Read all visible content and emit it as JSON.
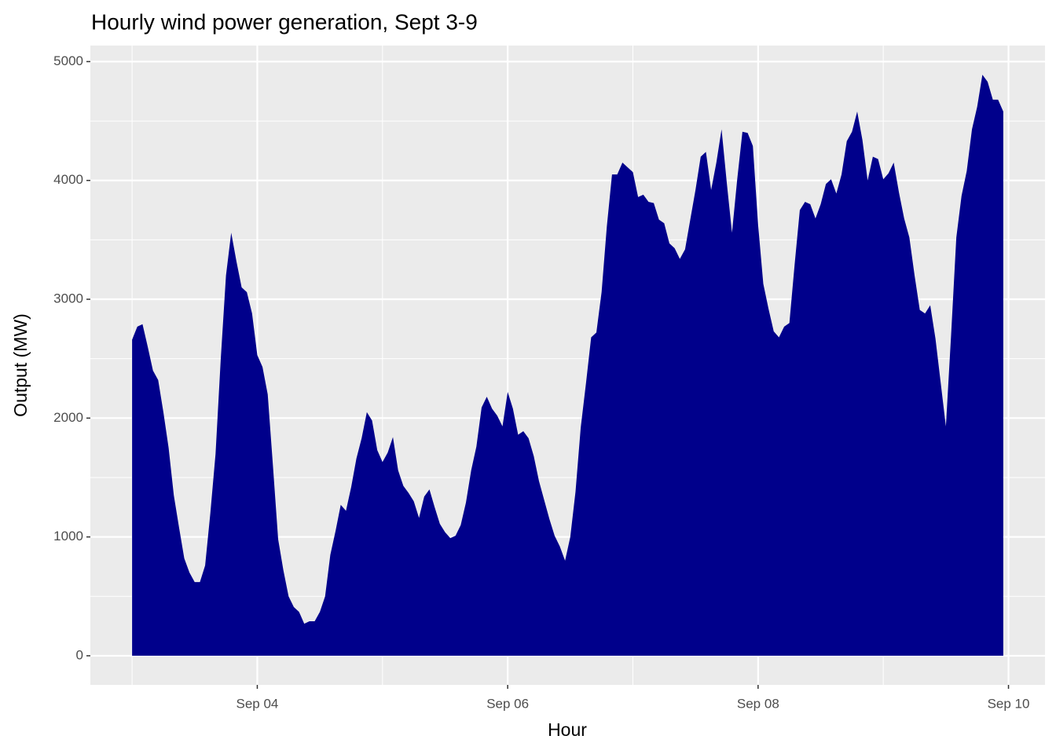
{
  "chart_data": {
    "type": "area",
    "title": "Hourly wind power generation, Sept 3-9",
    "x_label": "Hour",
    "y_label": "Output (MW)",
    "color": "#00008b",
    "grid": true,
    "x": [
      "Sep 03 00:00",
      "Sep 03 01:00",
      "Sep 03 02:00",
      "Sep 03 03:00",
      "Sep 03 04:00",
      "Sep 03 05:00",
      "Sep 03 06:00",
      "Sep 03 07:00",
      "Sep 03 08:00",
      "Sep 03 09:00",
      "Sep 03 10:00",
      "Sep 03 11:00",
      "Sep 03 12:00",
      "Sep 03 13:00",
      "Sep 03 14:00",
      "Sep 03 15:00",
      "Sep 03 16:00",
      "Sep 03 17:00",
      "Sep 03 18:00",
      "Sep 03 19:00",
      "Sep 03 20:00",
      "Sep 03 21:00",
      "Sep 03 22:00",
      "Sep 03 23:00",
      "Sep 04 00:00",
      "Sep 04 01:00",
      "Sep 04 02:00",
      "Sep 04 03:00",
      "Sep 04 04:00",
      "Sep 04 05:00",
      "Sep 04 06:00",
      "Sep 04 07:00",
      "Sep 04 08:00",
      "Sep 04 09:00",
      "Sep 04 10:00",
      "Sep 04 11:00",
      "Sep 04 12:00",
      "Sep 04 13:00",
      "Sep 04 14:00",
      "Sep 04 15:00",
      "Sep 04 16:00",
      "Sep 04 17:00",
      "Sep 04 18:00",
      "Sep 04 19:00",
      "Sep 04 20:00",
      "Sep 04 21:00",
      "Sep 04 22:00",
      "Sep 04 23:00",
      "Sep 05 00:00",
      "Sep 05 01:00",
      "Sep 05 02:00",
      "Sep 05 03:00",
      "Sep 05 04:00",
      "Sep 05 05:00",
      "Sep 05 06:00",
      "Sep 05 07:00",
      "Sep 05 08:00",
      "Sep 05 09:00",
      "Sep 05 10:00",
      "Sep 05 11:00",
      "Sep 05 12:00",
      "Sep 05 13:00",
      "Sep 05 14:00",
      "Sep 05 15:00",
      "Sep 05 16:00",
      "Sep 05 17:00",
      "Sep 05 18:00",
      "Sep 05 19:00",
      "Sep 05 20:00",
      "Sep 05 21:00",
      "Sep 05 22:00",
      "Sep 05 23:00",
      "Sep 06 00:00",
      "Sep 06 01:00",
      "Sep 06 02:00",
      "Sep 06 03:00",
      "Sep 06 04:00",
      "Sep 06 05:00",
      "Sep 06 06:00",
      "Sep 06 07:00",
      "Sep 06 08:00",
      "Sep 06 09:00",
      "Sep 06 10:00",
      "Sep 06 11:00",
      "Sep 06 12:00",
      "Sep 06 13:00",
      "Sep 06 14:00",
      "Sep 06 15:00",
      "Sep 06 16:00",
      "Sep 06 17:00",
      "Sep 06 18:00",
      "Sep 06 19:00",
      "Sep 06 20:00",
      "Sep 06 21:00",
      "Sep 06 22:00",
      "Sep 06 23:00",
      "Sep 07 00:00",
      "Sep 07 01:00",
      "Sep 07 02:00",
      "Sep 07 03:00",
      "Sep 07 04:00",
      "Sep 07 05:00",
      "Sep 07 06:00",
      "Sep 07 07:00",
      "Sep 07 08:00",
      "Sep 07 09:00",
      "Sep 07 10:00",
      "Sep 07 11:00",
      "Sep 07 12:00",
      "Sep 07 13:00",
      "Sep 07 14:00",
      "Sep 07 15:00",
      "Sep 07 16:00",
      "Sep 07 17:00",
      "Sep 07 18:00",
      "Sep 07 19:00",
      "Sep 07 20:00",
      "Sep 07 21:00",
      "Sep 07 22:00",
      "Sep 07 23:00",
      "Sep 08 00:00",
      "Sep 08 01:00",
      "Sep 08 02:00",
      "Sep 08 03:00",
      "Sep 08 04:00",
      "Sep 08 05:00",
      "Sep 08 06:00",
      "Sep 08 07:00",
      "Sep 08 08:00",
      "Sep 08 09:00",
      "Sep 08 10:00",
      "Sep 08 11:00",
      "Sep 08 12:00",
      "Sep 08 13:00",
      "Sep 08 14:00",
      "Sep 08 15:00",
      "Sep 08 16:00",
      "Sep 08 17:00",
      "Sep 08 18:00",
      "Sep 08 19:00",
      "Sep 08 20:00",
      "Sep 08 21:00",
      "Sep 08 22:00",
      "Sep 08 23:00",
      "Sep 09 00:00",
      "Sep 09 01:00",
      "Sep 09 02:00",
      "Sep 09 03:00",
      "Sep 09 04:00",
      "Sep 09 05:00",
      "Sep 09 06:00",
      "Sep 09 07:00",
      "Sep 09 08:00",
      "Sep 09 09:00",
      "Sep 09 10:00",
      "Sep 09 11:00",
      "Sep 09 12:00",
      "Sep 09 13:00",
      "Sep 09 14:00",
      "Sep 09 15:00",
      "Sep 09 16:00",
      "Sep 09 17:00",
      "Sep 09 18:00",
      "Sep 09 19:00",
      "Sep 09 20:00",
      "Sep 09 21:00",
      "Sep 09 22:00",
      "Sep 09 23:00"
    ],
    "values": [
      2660,
      2770,
      2790,
      2600,
      2400,
      2320,
      2050,
      1750,
      1350,
      1080,
      820,
      700,
      620,
      620,
      760,
      1200,
      1700,
      2500,
      3200,
      3560,
      3320,
      3100,
      3060,
      2880,
      2530,
      2430,
      2200,
      1600,
      980,
      720,
      500,
      410,
      370,
      270,
      290,
      290,
      370,
      500,
      850,
      1050,
      1270,
      1220,
      1420,
      1660,
      1830,
      2050,
      1980,
      1730,
      1630,
      1710,
      1840,
      1560,
      1430,
      1370,
      1300,
      1160,
      1340,
      1400,
      1250,
      1110,
      1040,
      990,
      1010,
      1100,
      1290,
      1560,
      1760,
      2090,
      2180,
      2080,
      2020,
      1930,
      2220,
      2080,
      1860,
      1890,
      1830,
      1680,
      1470,
      1310,
      1150,
      1010,
      920,
      800,
      1000,
      1380,
      1920,
      2290,
      2680,
      2720,
      3060,
      3610,
      4050,
      4050,
      4150,
      4110,
      4070,
      3860,
      3880,
      3820,
      3810,
      3670,
      3640,
      3470,
      3430,
      3340,
      3420,
      3670,
      3920,
      4200,
      4240,
      3920,
      4150,
      4430,
      3980,
      3560,
      4010,
      4410,
      4400,
      4290,
      3630,
      3130,
      2920,
      2730,
      2680,
      2770,
      2800,
      3290,
      3750,
      3820,
      3800,
      3680,
      3800,
      3970,
      4010,
      3890,
      4050,
      4330,
      4410,
      4580,
      4340,
      4000,
      4200,
      4180,
      4010,
      4060,
      4150,
      3900,
      3680,
      3520,
      3200,
      2910,
      2880,
      2950,
      2670,
      2300,
      1930,
      2700,
      3520,
      3870,
      4080,
      4430,
      4620,
      4890,
      4830,
      4680,
      4680,
      4580
    ],
    "xlim": [
      "Sep 02 16:00",
      "Sep 10 07:00"
    ],
    "xticks": [
      {
        "value": "Sep 04 00:00",
        "label": "Sep 04"
      },
      {
        "value": "Sep 06 00:00",
        "label": "Sep 06"
      },
      {
        "value": "Sep 08 00:00",
        "label": "Sep 08"
      },
      {
        "value": "Sep 10 00:00",
        "label": "Sep 10"
      }
    ],
    "ylim": [
      -245,
      5135
    ],
    "yticks": [
      0,
      1000,
      2000,
      3000,
      4000,
      5000
    ]
  }
}
